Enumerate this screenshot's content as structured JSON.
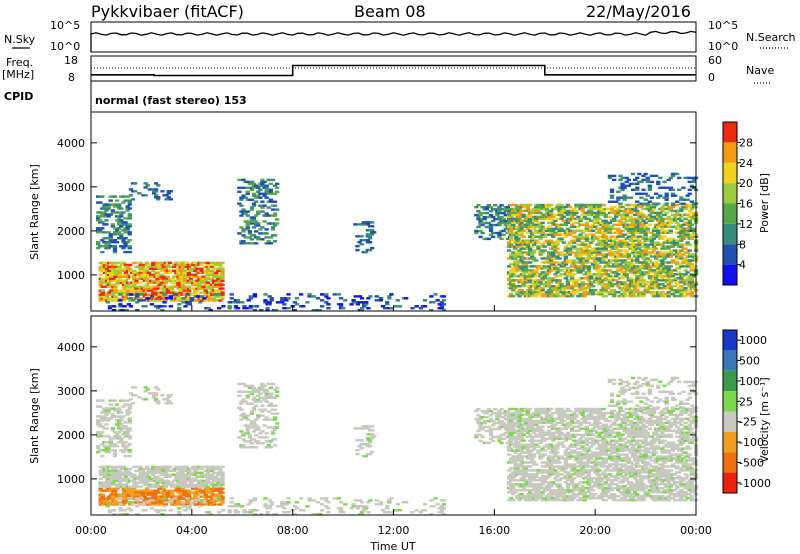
{
  "header": {
    "site": "Pykkvibaer (fitACF)",
    "beam": "Beam 08",
    "date": "22/May/2016"
  },
  "noise_panel": {
    "left_label": "N.Sky",
    "right_label": "N.Search",
    "left_ticks": [
      "10^5",
      "10^0"
    ],
    "right_ticks": [
      "10^5",
      "10^0"
    ],
    "sky_level": 0.6
  },
  "freq_panel": {
    "left_label_1": "Freq.",
    "left_label_2": "[MHz]",
    "right_label": "Nave",
    "left_ticks": [
      "18",
      "8"
    ],
    "right_ticks": [
      "60",
      "0"
    ],
    "freq_steps": [
      {
        "t": 0,
        "level": 0.25
      },
      {
        "t": 2.5,
        "level": 0.22
      },
      {
        "t": 8,
        "level": 0.62
      },
      {
        "t": 18,
        "level": 0.25
      }
    ]
  },
  "cpid": {
    "label": "CPID",
    "value": "normal (fast stereo) 153"
  },
  "chart_data": [
    {
      "type": "heatmap",
      "name": "power",
      "xlabel": "",
      "ylabel": "Slant Range [km]",
      "xlim": [
        0,
        24
      ],
      "ylim": [
        180,
        4700
      ],
      "yticks": [
        "1000",
        "2000",
        "3000",
        "4000"
      ],
      "colorbar_label": "Power [dB]",
      "colorbar_ticks": [
        "4",
        "8",
        "12",
        "16",
        "20",
        "24",
        "28"
      ],
      "colors": [
        "#1010f0",
        "#2050b0",
        "#3a8a7a",
        "#56a64a",
        "#9ccb3c",
        "#f0d21c",
        "#f49a14",
        "#ee2a10"
      ]
    },
    {
      "type": "heatmap",
      "name": "velocity",
      "xlabel": "Time UT",
      "ylabel": "Slant Range [km]",
      "xlim": [
        0,
        24
      ],
      "ylim": [
        180,
        4700
      ],
      "yticks": [
        "1000",
        "2000",
        "3000",
        "4000"
      ],
      "xticks": [
        "00:00",
        "04:00",
        "08:00",
        "12:00",
        "16:00",
        "20:00",
        "00:00"
      ],
      "colorbar_label": "Velocity [m s⁻¹]",
      "colorbar_ticks": [
        "1000",
        "500",
        "100",
        "25",
        "-25",
        "-100",
        "-500",
        "-1000"
      ],
      "colors": [
        "#1838c8",
        "#3a78b8",
        "#3a9a4a",
        "#7ad84a",
        "#c8c8c0",
        "#f0a020",
        "#f07010",
        "#ee2010"
      ]
    }
  ]
}
